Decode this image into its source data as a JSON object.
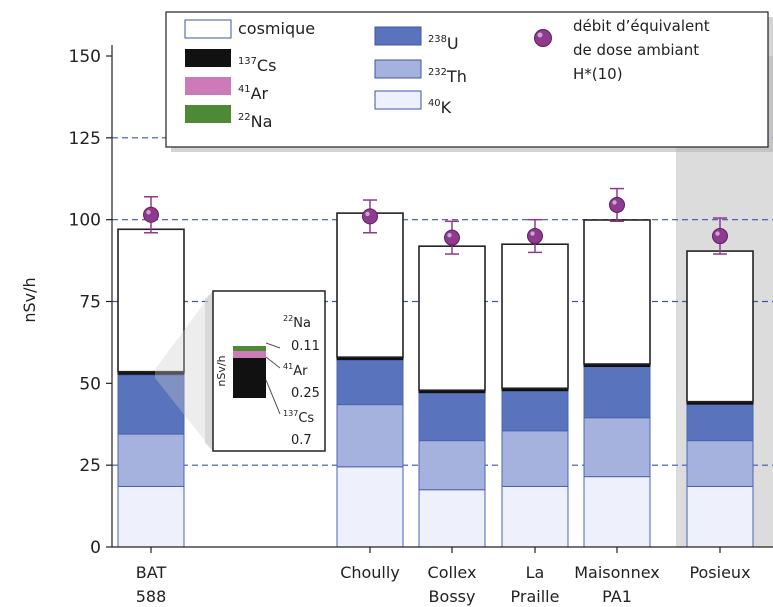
{
  "chart_data": {
    "type": "bar",
    "stacked": true,
    "ylabel": "nSv/h",
    "ylim": [
      0,
      150
    ],
    "yticks": [
      0,
      25,
      50,
      75,
      100,
      125,
      150
    ],
    "grid": "dashed lines at 25, 75, 100, 125",
    "categories": [
      {
        "lines": [
          "BAT",
          "588"
        ]
      },
      {
        "lines": [
          "Choully"
        ]
      },
      {
        "lines": [
          "Collex",
          "Bossy"
        ]
      },
      {
        "lines": [
          "La",
          "Praille"
        ]
      },
      {
        "lines": [
          "Maisonnex",
          "PA1"
        ]
      },
      {
        "lines": [
          "Posieux"
        ]
      }
    ],
    "series": [
      {
        "key": "K40",
        "iso": "40",
        "el": "K",
        "color": "#eef1fb",
        "values": [
          18.5,
          24.5,
          17.5,
          18.5,
          21.5,
          18.5
        ]
      },
      {
        "key": "Th232",
        "iso": "232",
        "el": "Th",
        "color": "#a6b2de",
        "values": [
          16,
          19,
          15,
          17,
          18,
          14
        ]
      },
      {
        "key": "U238",
        "iso": "238",
        "el": "U",
        "color": "#5a73bd",
        "values": [
          18,
          14,
          15,
          12.5,
          16,
          11.5
        ]
      },
      {
        "key": "Na22",
        "iso": "22",
        "el": "Na",
        "color": "#4e8a36",
        "values": [
          0.11,
          0,
          0,
          0,
          0,
          0
        ]
      },
      {
        "key": "Ar41",
        "iso": "41",
        "el": "Ar",
        "color": "#cc7ab8",
        "values": [
          0.25,
          0,
          0,
          0,
          0,
          0
        ]
      },
      {
        "key": "Cs137",
        "iso": "137",
        "el": "Cs",
        "color": "#111111",
        "values": [
          0.7,
          0.5,
          0.4,
          0.5,
          0.4,
          0.4
        ]
      },
      {
        "key": "cosmic",
        "label": "cosmique",
        "color": "#ffffff",
        "values": [
          43.5,
          44,
          44,
          44,
          44,
          46
        ]
      }
    ],
    "dose_rate": {
      "label": [
        "débit d’équivalent",
        "de dose ambiant",
        "H*(10)"
      ],
      "color": "#8e3a8e",
      "values": [
        101.5,
        101,
        94.5,
        95,
        104.5,
        95
      ],
      "errors": [
        5.5,
        5,
        5,
        5,
        5,
        5.5
      ]
    },
    "inset": {
      "ylabel": "nSv/h",
      "entries": [
        {
          "iso": "22",
          "el": "Na",
          "value": "0.11"
        },
        {
          "iso": "41",
          "el": "Ar",
          "value": "0.25"
        },
        {
          "iso": "137",
          "el": "Cs",
          "value": "0.7"
        }
      ]
    },
    "legend_position": "top",
    "highlight_band": "Posieux (grey background)"
  }
}
